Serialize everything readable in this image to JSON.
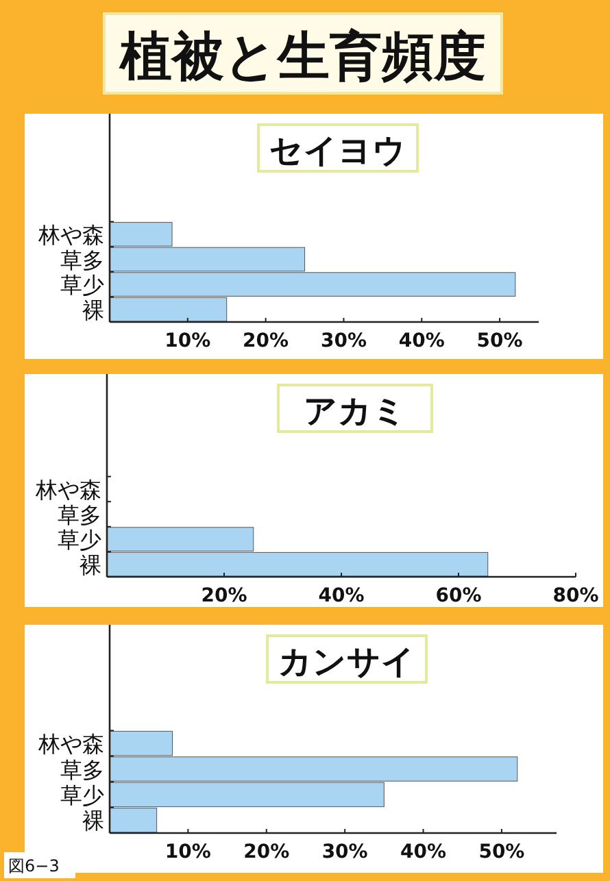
{
  "chart_data": [
    {
      "type": "other",
      "title": "植被と生育頻度",
      "annotations": [
        "図6−3"
      ]
    },
    {
      "type": "bar",
      "orientation": "horizontal",
      "title": "セイヨウ",
      "categories": [
        "林や森",
        "草多",
        "草少",
        "裸"
      ],
      "values": [
        8,
        25,
        52,
        15
      ],
      "color": "#a9d5f3",
      "xlim": [
        0,
        55
      ],
      "xticks": [
        {
          "value": 10,
          "label": "10%"
        },
        {
          "value": 20,
          "label": "20%"
        },
        {
          "value": 30,
          "label": "30%"
        },
        {
          "value": 40,
          "label": "40%"
        },
        {
          "value": 50,
          "label": "50%"
        }
      ]
    },
    {
      "type": "bar",
      "orientation": "horizontal",
      "title": "アカミ",
      "categories": [
        "林や森",
        "草多",
        "草少",
        "裸"
      ],
      "values": [
        0,
        0,
        25,
        65
      ],
      "color": "#a9d5f3",
      "xlim": [
        0,
        80
      ],
      "xticks": [
        {
          "value": 20,
          "label": "20%"
        },
        {
          "value": 40,
          "label": "40%"
        },
        {
          "value": 60,
          "label": "60%"
        },
        {
          "value": 80,
          "label": "80%"
        }
      ]
    },
    {
      "type": "bar",
      "orientation": "horizontal",
      "title": "カンサイ",
      "categories": [
        "林や森",
        "草多",
        "草少",
        "裸"
      ],
      "values": [
        8,
        52,
        35,
        6
      ],
      "color": "#a9d5f3",
      "xlim": [
        0,
        57
      ],
      "xticks": [
        {
          "value": 10,
          "label": "10%"
        },
        {
          "value": 20,
          "label": "20%"
        },
        {
          "value": 30,
          "label": "30%"
        },
        {
          "value": 40,
          "label": "40%"
        },
        {
          "value": 50,
          "label": "50%"
        }
      ]
    }
  ]
}
